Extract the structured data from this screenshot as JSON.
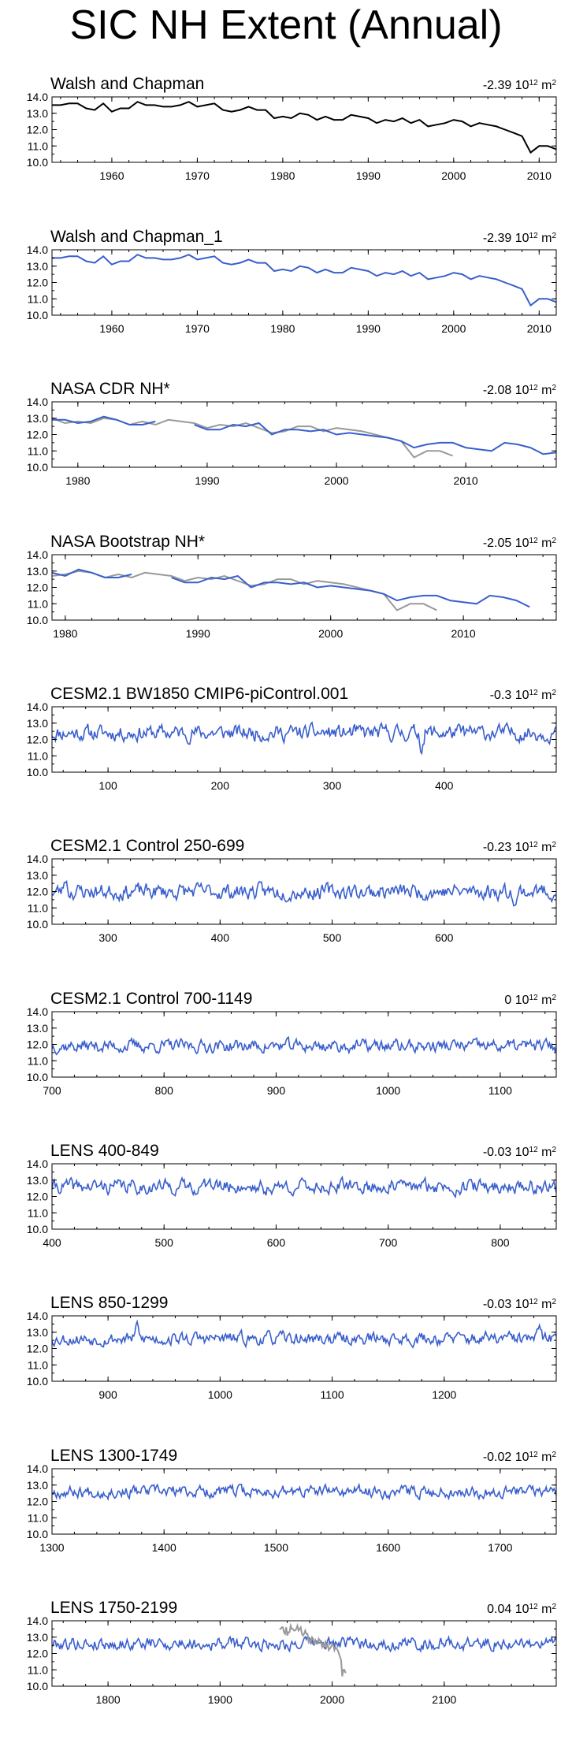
{
  "page": {
    "title": "SIC NH Extent (Annual)"
  },
  "colors": {
    "obs": "#000000",
    "model": "#3a5fcd",
    "reference": "#999999",
    "frame": "#000000"
  },
  "chart_data": [
    {
      "type": "line",
      "title": "Walsh and Chapman",
      "trend": "-2.39",
      "units": "10",
      "units_exp": "12",
      "units_tail": " m",
      "units_tail_exp": "2",
      "xlim": [
        1953,
        2012
      ],
      "ylim": [
        10.0,
        14.0
      ],
      "xticks": [
        1960,
        1970,
        1980,
        1990,
        2000,
        2010
      ],
      "yticks": [
        "10.0",
        "11.0",
        "12.0",
        "13.0",
        "14.0"
      ],
      "series": [
        {
          "color": "#000000",
          "style": "polyline",
          "x0": 1953,
          "dx": 1,
          "values": [
            13.5,
            13.5,
            13.6,
            13.6,
            13.3,
            13.2,
            13.6,
            13.1,
            13.3,
            13.3,
            13.7,
            13.5,
            13.5,
            13.4,
            13.4,
            13.5,
            13.7,
            13.4,
            13.5,
            13.6,
            13.2,
            13.1,
            13.2,
            13.4,
            13.2,
            13.2,
            12.7,
            12.8,
            12.7,
            13.0,
            12.9,
            12.6,
            12.8,
            12.6,
            12.6,
            12.9,
            12.8,
            12.7,
            12.4,
            12.6,
            12.5,
            12.7,
            12.4,
            12.6,
            12.2,
            12.3,
            12.4,
            12.6,
            12.5,
            12.2,
            12.4,
            12.3,
            12.2,
            12.0,
            11.8,
            11.6,
            10.6,
            11.0,
            11.0,
            10.8
          ]
        }
      ]
    },
    {
      "type": "line",
      "title": "Walsh and Chapman_1",
      "trend": "-2.39",
      "units": "10",
      "units_exp": "12",
      "units_tail": " m",
      "units_tail_exp": "2",
      "xlim": [
        1953,
        2012
      ],
      "ylim": [
        10.0,
        14.0
      ],
      "xticks": [
        1960,
        1970,
        1980,
        1990,
        2000,
        2010
      ],
      "yticks": [
        "10.0",
        "11.0",
        "12.0",
        "13.0",
        "14.0"
      ],
      "series": [
        {
          "color": "#3a5fcd",
          "style": "polyline",
          "x0": 1953,
          "dx": 1,
          "values": [
            13.5,
            13.5,
            13.6,
            13.6,
            13.3,
            13.2,
            13.6,
            13.1,
            13.3,
            13.3,
            13.7,
            13.5,
            13.5,
            13.4,
            13.4,
            13.5,
            13.7,
            13.4,
            13.5,
            13.6,
            13.2,
            13.1,
            13.2,
            13.4,
            13.2,
            13.2,
            12.7,
            12.8,
            12.7,
            13.0,
            12.9,
            12.6,
            12.8,
            12.6,
            12.6,
            12.9,
            12.8,
            12.7,
            12.4,
            12.6,
            12.5,
            12.7,
            12.4,
            12.6,
            12.2,
            12.3,
            12.4,
            12.6,
            12.5,
            12.2,
            12.4,
            12.3,
            12.2,
            12.0,
            11.8,
            11.6,
            10.6,
            11.0,
            11.0,
            10.8
          ]
        }
      ]
    },
    {
      "type": "line",
      "title": "NASA CDR NH*",
      "trend": "-2.08",
      "units": "10",
      "units_exp": "12",
      "units_tail": " m",
      "units_tail_exp": "2",
      "xlim": [
        1978,
        2017
      ],
      "ylim": [
        10.0,
        14.0
      ],
      "xticks": [
        1980,
        1990,
        2000,
        2010
      ],
      "yticks": [
        "10.0",
        "11.0",
        "12.0",
        "13.0",
        "14.0"
      ],
      "series": [
        {
          "color": "#999999",
          "style": "polyline",
          "x0": 1978,
          "dx": 1,
          "values": [
            13.0,
            12.7,
            12.8,
            12.7,
            13.0,
            12.9,
            12.6,
            12.8,
            12.6,
            12.9,
            12.8,
            12.7,
            12.4,
            12.6,
            12.5,
            12.7,
            12.4,
            12.1,
            12.2,
            12.5,
            12.5,
            12.2,
            12.4,
            12.3,
            12.2,
            12.0,
            11.8,
            11.6,
            10.6,
            11.0,
            11.0,
            10.7
          ]
        },
        {
          "color": "#3a5fcd",
          "style": "polyline",
          "x0": 1978,
          "dx": 1,
          "values": [
            12.9,
            12.9,
            12.7,
            12.8,
            13.1,
            12.9,
            12.6,
            12.6,
            12.8,
            null,
            null,
            12.6,
            12.3,
            12.3,
            12.6,
            12.5,
            12.7,
            12.0,
            12.3,
            12.3,
            12.2,
            12.3,
            12.0,
            12.1,
            12.0,
            11.9,
            11.8,
            11.6,
            11.2,
            11.4,
            11.5,
            11.5,
            11.2,
            11.1,
            11.0,
            11.5,
            11.4,
            11.2,
            10.8,
            10.9
          ]
        }
      ]
    },
    {
      "type": "line",
      "title": "NASA Bootstrap NH*",
      "trend": "-2.05",
      "units": "10",
      "units_exp": "12",
      "units_tail": " m",
      "units_tail_exp": "2",
      "xlim": [
        1979,
        2017
      ],
      "ylim": [
        10.0,
        14.0
      ],
      "xticks": [
        1980,
        1990,
        2000,
        2010
      ],
      "yticks": [
        "10.0",
        "11.0",
        "12.0",
        "13.0",
        "14.0"
      ],
      "series": [
        {
          "color": "#999999",
          "style": "polyline",
          "x0": 1979,
          "dx": 1,
          "values": [
            12.7,
            12.8,
            13.0,
            12.9,
            12.6,
            12.8,
            12.6,
            12.9,
            12.8,
            12.7,
            12.4,
            12.6,
            12.5,
            12.7,
            12.4,
            12.1,
            12.2,
            12.5,
            12.5,
            12.2,
            12.4,
            12.3,
            12.2,
            12.0,
            11.8,
            11.6,
            10.6,
            11.0,
            11.0,
            10.6
          ]
        },
        {
          "color": "#3a5fcd",
          "style": "polyline",
          "x0": 1979,
          "dx": 1,
          "values": [
            12.9,
            12.7,
            13.1,
            12.9,
            12.6,
            12.6,
            12.8,
            null,
            null,
            12.6,
            12.3,
            12.3,
            12.6,
            12.5,
            12.7,
            12.0,
            12.3,
            12.3,
            12.2,
            12.3,
            12.0,
            12.1,
            12.0,
            11.9,
            11.8,
            11.6,
            11.2,
            11.4,
            11.5,
            11.5,
            11.2,
            11.1,
            11.0,
            11.5,
            11.4,
            11.2,
            10.8
          ]
        }
      ]
    },
    {
      "type": "line",
      "title": "CESM2.1 BW1850 CMIP6-piControl.001",
      "trend": "-0.3",
      "units": "10",
      "units_exp": "12",
      "units_tail": " m",
      "units_tail_exp": "2",
      "xlim": [
        50,
        500
      ],
      "ylim": [
        10.0,
        14.0
      ],
      "xticks": [
        100,
        200,
        300,
        400
      ],
      "yticks": [
        "10.0",
        "11.0",
        "12.0",
        "13.0",
        "14.0"
      ],
      "series": [
        {
          "color": "#3a5fcd",
          "style": "noise",
          "seed": 11,
          "mean": 12.4,
          "amp": 0.55,
          "events": [
            [
              380,
              -0.9
            ]
          ]
        }
      ]
    },
    {
      "type": "line",
      "title": "CESM2.1 Control 250-699",
      "trend": "-0.23",
      "units": "10",
      "units_exp": "12",
      "units_tail": " m",
      "units_tail_exp": "2",
      "xlim": [
        250,
        700
      ],
      "ylim": [
        10.0,
        14.0
      ],
      "xticks": [
        300,
        400,
        500,
        600
      ],
      "yticks": [
        "10.0",
        "11.0",
        "12.0",
        "13.0",
        "14.0"
      ],
      "series": [
        {
          "color": "#3a5fcd",
          "style": "noise",
          "seed": 23,
          "mean": 12.0,
          "amp": 0.55,
          "events": [
            [
              262,
              0.9
            ],
            [
              664,
              -0.8
            ]
          ]
        }
      ]
    },
    {
      "type": "line",
      "title": "CESM2.1 Control 700-1149",
      "trend": "0",
      "units": "10",
      "units_exp": "12",
      "units_tail": " m",
      "units_tail_exp": "2",
      "xlim": [
        700,
        1150
      ],
      "ylim": [
        10.0,
        14.0
      ],
      "xticks": [
        700,
        800,
        900,
        1000,
        1100
      ],
      "yticks": [
        "10.0",
        "11.0",
        "12.0",
        "13.0",
        "14.0"
      ],
      "series": [
        {
          "color": "#3a5fcd",
          "style": "noise",
          "seed": 37,
          "mean": 11.9,
          "amp": 0.45,
          "events": []
        }
      ]
    },
    {
      "type": "line",
      "title": "LENS 400-849",
      "trend": "-0.03",
      "units": "10",
      "units_exp": "12",
      "units_tail": " m",
      "units_tail_exp": "2",
      "xlim": [
        400,
        850
      ],
      "ylim": [
        10.0,
        14.0
      ],
      "xticks": [
        400,
        500,
        600,
        700,
        800
      ],
      "yticks": [
        "10.0",
        "11.0",
        "12.0",
        "13.0",
        "14.0"
      ],
      "series": [
        {
          "color": "#3a5fcd",
          "style": "noise",
          "seed": 41,
          "mean": 12.6,
          "amp": 0.5,
          "events": [
            [
              540,
              0.8
            ],
            [
              590,
              -0.6
            ]
          ]
        }
      ]
    },
    {
      "type": "line",
      "title": "LENS 850-1299",
      "trend": "-0.03",
      "units": "10",
      "units_exp": "12",
      "units_tail": " m",
      "units_tail_exp": "2",
      "xlim": [
        850,
        1300
      ],
      "ylim": [
        10.0,
        14.0
      ],
      "xticks": [
        900,
        1000,
        1100,
        1200
      ],
      "yticks": [
        "10.0",
        "11.0",
        "12.0",
        "13.0",
        "14.0"
      ],
      "series": [
        {
          "color": "#3a5fcd",
          "style": "noise",
          "seed": 53,
          "mean": 12.6,
          "amp": 0.45,
          "events": [
            [
              926,
              0.8
            ],
            [
              1285,
              0.6
            ]
          ]
        }
      ]
    },
    {
      "type": "line",
      "title": "LENS 1300-1749",
      "trend": "-0.02",
      "units": "10",
      "units_exp": "12",
      "units_tail": " m",
      "units_tail_exp": "2",
      "xlim": [
        1300,
        1750
      ],
      "ylim": [
        10.0,
        14.0
      ],
      "xticks": [
        1300,
        1400,
        1500,
        1600,
        1700
      ],
      "yticks": [
        "10.0",
        "11.0",
        "12.0",
        "13.0",
        "14.0"
      ],
      "series": [
        {
          "color": "#3a5fcd",
          "style": "noise",
          "seed": 67,
          "mean": 12.6,
          "amp": 0.42,
          "events": [
            [
              1705,
              0.7
            ]
          ]
        }
      ]
    },
    {
      "type": "line",
      "title": "LENS 1750-2199",
      "trend": "0.04",
      "units": "10",
      "units_exp": "12",
      "units_tail": " m",
      "units_tail_exp": "2",
      "xlim": [
        1750,
        2200
      ],
      "ylim": [
        10.0,
        14.0
      ],
      "xticks": [
        1800,
        1900,
        2000,
        2100
      ],
      "yticks": [
        "10.0",
        "11.0",
        "12.0",
        "13.0",
        "14.0"
      ],
      "series": [
        {
          "color": "#3a5fcd",
          "style": "noise",
          "seed": 79,
          "mean": 12.6,
          "amp": 0.45,
          "events": []
        },
        {
          "color": "#999999",
          "style": "polyline",
          "x0": 1953,
          "dx": 1,
          "values": [
            13.5,
            13.5,
            13.6,
            13.6,
            13.3,
            13.2,
            13.6,
            13.1,
            13.3,
            13.3,
            13.7,
            13.5,
            13.5,
            13.4,
            13.4,
            13.5,
            13.7,
            13.4,
            13.5,
            13.6,
            13.2,
            13.1,
            13.2,
            13.4,
            13.2,
            13.2,
            12.7,
            12.8,
            12.7,
            13.0,
            12.9,
            12.6,
            12.8,
            12.6,
            12.6,
            12.9,
            12.8,
            12.7,
            12.4,
            12.6,
            12.5,
            12.7,
            12.4,
            12.6,
            12.2,
            12.3,
            12.4,
            12.6,
            12.5,
            12.2,
            12.4,
            12.3,
            12.2,
            12.0,
            11.8,
            11.6,
            10.6,
            11.0,
            11.0,
            10.8
          ]
        }
      ]
    }
  ]
}
